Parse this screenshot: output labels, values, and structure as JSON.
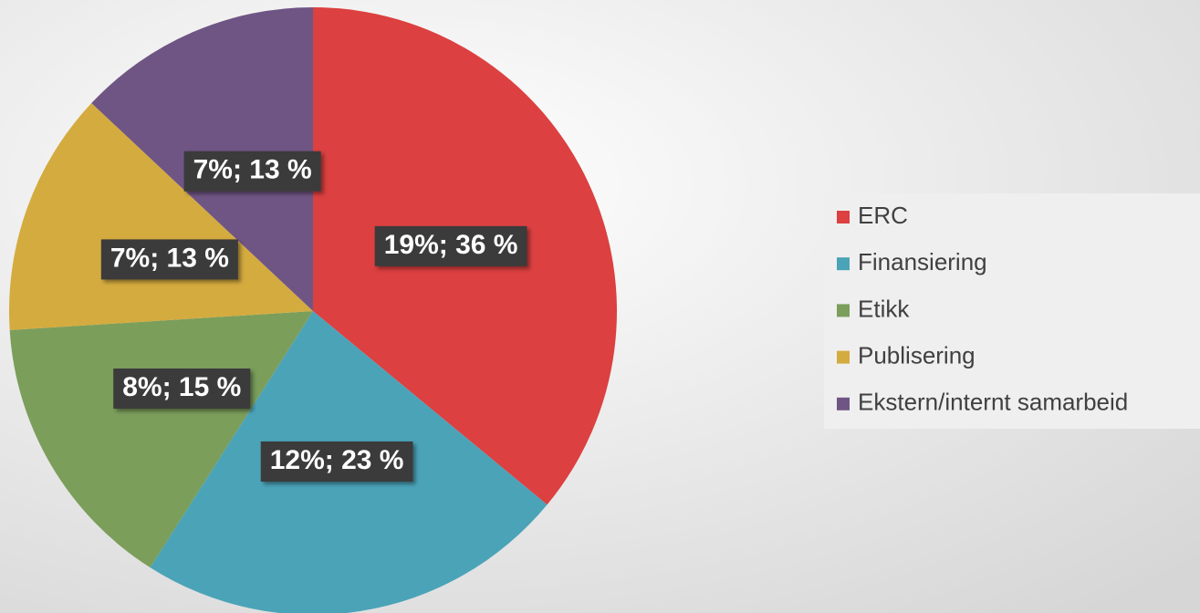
{
  "chart_data": {
    "type": "pie",
    "categories": [
      "ERC",
      "Finansiering",
      "Etikk",
      "Publisering",
      "Ekstern/internt samarbeid"
    ],
    "values": [
      36,
      23,
      15,
      13,
      13
    ],
    "value_labels": [
      "19%; 36 %",
      "12%; 23 %",
      "8%; 15 %",
      "7%; 13 %",
      "7%; 13 %"
    ],
    "colors": [
      "#dc4040",
      "#4ba3b8",
      "#7b9e5b",
      "#d4ab3f",
      "#6f5584"
    ],
    "legend": "right"
  }
}
